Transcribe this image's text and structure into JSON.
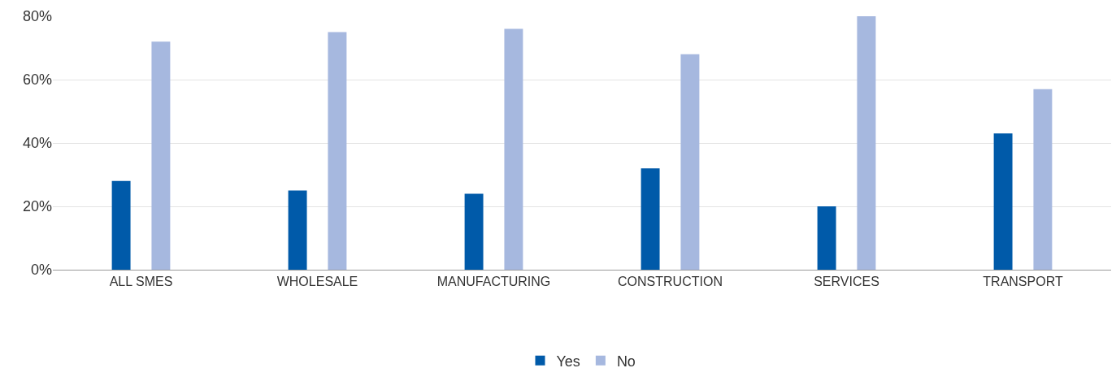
{
  "chart_data": {
    "type": "bar",
    "categories": [
      "ALL SMES",
      "WHOLESALE",
      "MANUFACTURING",
      "CONSTRUCTION",
      "SERVICES",
      "TRANSPORT"
    ],
    "series": [
      {
        "name": "Yes",
        "color": "#005aa9",
        "values": [
          28,
          25,
          24,
          32,
          20,
          43
        ]
      },
      {
        "name": "No",
        "color": "#a6b8df",
        "values": [
          72,
          75,
          76,
          68,
          80,
          57
        ]
      }
    ],
    "ylim": [
      0,
      80
    ],
    "yticks": [
      {
        "value": 0,
        "label": "0%"
      },
      {
        "value": 20,
        "label": "20%"
      },
      {
        "value": 40,
        "label": "40%"
      },
      {
        "value": 60,
        "label": "60%"
      },
      {
        "value": 80,
        "label": "80%"
      }
    ],
    "grid": "y",
    "legend": "bottom"
  }
}
